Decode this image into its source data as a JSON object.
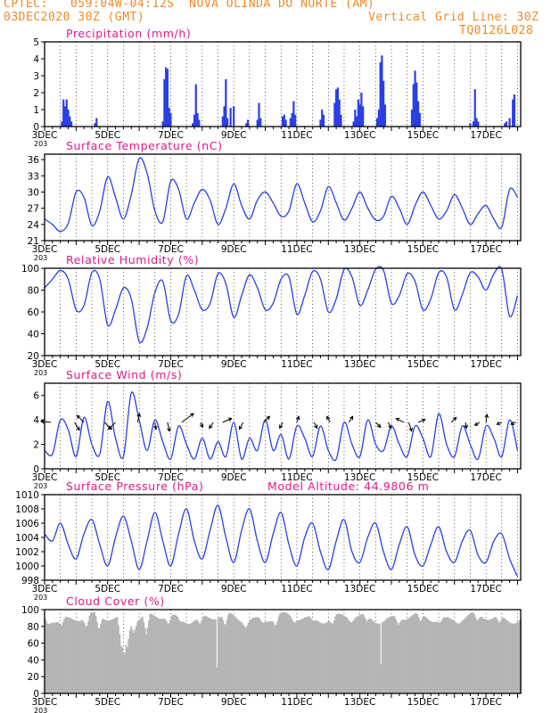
{
  "header": {
    "line1": "CPTEC:   059:04W-04:12S  NOVA OLINDA DO NORTE (AM)",
    "line2_left": "03DEC2020 30Z (GMT)",
    "line2_right": "Vertical Grid Line: 30Z",
    "model": "TQ0126L028"
  },
  "chart_data": [
    {
      "type": "bar",
      "title": "Precipitation (mm/h)",
      "ylim": [
        0,
        5
      ],
      "yticks": [
        0,
        1,
        2,
        3,
        4,
        5
      ],
      "xticks": [
        "3DEC",
        "5DEC",
        "7DEC",
        "9DEC",
        "11DEC",
        "13DEC",
        "15DEC",
        "17DEC"
      ],
      "x_start_label": "203",
      "bars": [
        {
          "day": 3.55,
          "value": 0.3
        },
        {
          "day": 3.6,
          "value": 1.6
        },
        {
          "day": 3.65,
          "value": 1.2
        },
        {
          "day": 3.7,
          "value": 1.6
        },
        {
          "day": 3.75,
          "value": 1.0
        },
        {
          "day": 3.8,
          "value": 0.6
        },
        {
          "day": 3.85,
          "value": 0.3
        },
        {
          "day": 4.6,
          "value": 0.2
        },
        {
          "day": 4.65,
          "value": 0.5
        },
        {
          "day": 6.75,
          "value": 0.3
        },
        {
          "day": 6.8,
          "value": 2.8
        },
        {
          "day": 6.85,
          "value": 3.5
        },
        {
          "day": 6.9,
          "value": 3.4
        },
        {
          "day": 6.95,
          "value": 1.1
        },
        {
          "day": 7.0,
          "value": 0.8
        },
        {
          "day": 7.7,
          "value": 0.2
        },
        {
          "day": 7.75,
          "value": 0.7
        },
        {
          "day": 7.8,
          "value": 2.5
        },
        {
          "day": 7.85,
          "value": 0.8
        },
        {
          "day": 7.9,
          "value": 0.4
        },
        {
          "day": 8.65,
          "value": 0.6
        },
        {
          "day": 8.7,
          "value": 1.2
        },
        {
          "day": 8.75,
          "value": 2.8
        },
        {
          "day": 8.8,
          "value": 0.5
        },
        {
          "day": 8.9,
          "value": 1.1
        },
        {
          "day": 9.0,
          "value": 1.2
        },
        {
          "day": 9.4,
          "value": 0.2
        },
        {
          "day": 9.45,
          "value": 0.4
        },
        {
          "day": 9.75,
          "value": 0.4
        },
        {
          "day": 9.8,
          "value": 1.4
        },
        {
          "day": 9.85,
          "value": 0.5
        },
        {
          "day": 10.55,
          "value": 0.6
        },
        {
          "day": 10.6,
          "value": 0.7
        },
        {
          "day": 10.65,
          "value": 0.4
        },
        {
          "day": 10.8,
          "value": 0.5
        },
        {
          "day": 10.85,
          "value": 0.8
        },
        {
          "day": 10.9,
          "value": 1.5
        },
        {
          "day": 10.95,
          "value": 0.7
        },
        {
          "day": 11.75,
          "value": 0.4
        },
        {
          "day": 11.8,
          "value": 1.0
        },
        {
          "day": 11.85,
          "value": 0.7
        },
        {
          "day": 12.2,
          "value": 1.4
        },
        {
          "day": 12.25,
          "value": 2.2
        },
        {
          "day": 12.3,
          "value": 2.3
        },
        {
          "day": 12.35,
          "value": 1.6
        },
        {
          "day": 12.4,
          "value": 0.7
        },
        {
          "day": 12.8,
          "value": 0.3
        },
        {
          "day": 12.85,
          "value": 1.0
        },
        {
          "day": 12.9,
          "value": 0.6
        },
        {
          "day": 12.95,
          "value": 1.6
        },
        {
          "day": 13.0,
          "value": 1.3
        },
        {
          "day": 13.05,
          "value": 2.0
        },
        {
          "day": 13.1,
          "value": 1.2
        },
        {
          "day": 13.55,
          "value": 0.5
        },
        {
          "day": 13.6,
          "value": 1.0
        },
        {
          "day": 13.65,
          "value": 3.8
        },
        {
          "day": 13.7,
          "value": 4.2
        },
        {
          "day": 13.75,
          "value": 2.7
        },
        {
          "day": 13.8,
          "value": 1.3
        },
        {
          "day": 14.65,
          "value": 1.0
        },
        {
          "day": 14.7,
          "value": 2.5
        },
        {
          "day": 14.75,
          "value": 3.3
        },
        {
          "day": 14.8,
          "value": 2.6
        },
        {
          "day": 14.85,
          "value": 1.5
        },
        {
          "day": 14.9,
          "value": 0.8
        },
        {
          "day": 16.5,
          "value": 0.2
        },
        {
          "day": 16.6,
          "value": 0.3
        },
        {
          "day": 16.65,
          "value": 2.2
        },
        {
          "day": 16.7,
          "value": 0.5
        },
        {
          "day": 16.75,
          "value": 0.3
        },
        {
          "day": 17.6,
          "value": 0.2
        },
        {
          "day": 17.65,
          "value": 0.3
        },
        {
          "day": 17.75,
          "value": 0.5
        },
        {
          "day": 17.85,
          "value": 1.6
        },
        {
          "day": 17.9,
          "value": 1.9
        }
      ]
    },
    {
      "type": "line",
      "title": "Surface Temperature (nC)",
      "ylim": [
        21,
        37
      ],
      "yticks": [
        21,
        24,
        27,
        30,
        33,
        36
      ],
      "xticks": [
        "3DEC",
        "5DEC",
        "7DEC",
        "9DEC",
        "11DEC",
        "13DEC",
        "15DEC",
        "17DEC"
      ],
      "x_start_label": "203",
      "x": [
        3.0,
        3.25,
        3.5,
        3.75,
        4.0,
        4.25,
        4.5,
        4.75,
        5.0,
        5.25,
        5.5,
        5.75,
        6.0,
        6.25,
        6.5,
        6.75,
        7.0,
        7.25,
        7.5,
        7.75,
        8.0,
        8.25,
        8.5,
        8.75,
        9.0,
        9.25,
        9.5,
        9.75,
        10.0,
        10.25,
        10.5,
        10.75,
        11.0,
        11.25,
        11.5,
        11.75,
        12.0,
        12.25,
        12.5,
        12.75,
        13.0,
        13.25,
        13.5,
        13.75,
        14.0,
        14.25,
        14.5,
        14.75,
        15.0,
        15.25,
        15.5,
        15.75,
        16.0,
        16.25,
        16.5,
        16.75,
        17.0,
        17.25,
        17.5,
        17.75,
        18.0
      ],
      "y": [
        25.0,
        24.0,
        22.7,
        24.2,
        30.0,
        29.0,
        23.8,
        26.5,
        32.8,
        29.0,
        25.0,
        29.5,
        36.2,
        33.5,
        26.5,
        24.5,
        32.0,
        30.5,
        25.0,
        28.0,
        30.5,
        28.5,
        24.0,
        27.0,
        31.5,
        27.5,
        25.0,
        28.5,
        30.0,
        28.0,
        25.5,
        26.5,
        31.5,
        28.0,
        24.5,
        26.5,
        31.0,
        28.0,
        24.8,
        27.0,
        30.0,
        27.0,
        24.8,
        25.5,
        29.2,
        27.0,
        24.0,
        27.5,
        30.0,
        27.5,
        25.0,
        26.5,
        29.5,
        27.0,
        24.0,
        26.0,
        27.5,
        25.0,
        23.5,
        30.5,
        29.0
      ]
    },
    {
      "type": "line",
      "title": "Relative Humidity (%)",
      "ylim": [
        20,
        100
      ],
      "yticks": [
        20,
        40,
        60,
        80,
        100
      ],
      "xticks": [
        "3DEC",
        "5DEC",
        "7DEC",
        "9DEC",
        "11DEC",
        "13DEC",
        "15DEC",
        "17DEC"
      ],
      "x_start_label": "203",
      "x": [
        3.0,
        3.25,
        3.5,
        3.75,
        4.0,
        4.25,
        4.5,
        4.75,
        5.0,
        5.25,
        5.5,
        5.75,
        6.0,
        6.25,
        6.5,
        6.75,
        7.0,
        7.25,
        7.5,
        7.75,
        8.0,
        8.25,
        8.5,
        8.75,
        9.0,
        9.25,
        9.5,
        9.75,
        10.0,
        10.25,
        10.5,
        10.75,
        11.0,
        11.25,
        11.5,
        11.75,
        12.0,
        12.25,
        12.5,
        12.75,
        13.0,
        13.25,
        13.5,
        13.75,
        14.0,
        14.25,
        14.5,
        14.75,
        15.0,
        15.25,
        15.5,
        15.75,
        16.0,
        16.25,
        16.5,
        16.75,
        17.0,
        17.25,
        17.5,
        17.75,
        18.0
      ],
      "y": [
        82,
        90,
        98,
        90,
        62,
        66,
        96,
        90,
        48,
        62,
        82,
        72,
        33,
        45,
        78,
        88,
        52,
        58,
        93,
        80,
        62,
        68,
        95,
        86,
        55,
        75,
        94,
        82,
        62,
        68,
        90,
        92,
        58,
        75,
        97,
        90,
        60,
        72,
        99,
        92,
        66,
        80,
        99,
        98,
        68,
        75,
        95,
        88,
        62,
        72,
        96,
        92,
        62,
        76,
        96,
        92,
        80,
        95,
        99,
        56,
        75
      ]
    },
    {
      "type": "line",
      "title": "Surface Wind (m/s)",
      "ylim": [
        0,
        7
      ],
      "yticks": [
        0,
        2,
        4,
        6
      ],
      "xticks": [
        "3DEC",
        "5DEC",
        "7DEC",
        "9DEC",
        "11DEC",
        "13DEC",
        "15DEC",
        "17DEC"
      ],
      "x_start_label": "203",
      "x": [
        3.0,
        3.25,
        3.5,
        3.75,
        4.0,
        4.25,
        4.5,
        4.75,
        5.0,
        5.25,
        5.5,
        5.75,
        6.0,
        6.25,
        6.5,
        6.75,
        7.0,
        7.25,
        7.5,
        7.75,
        8.0,
        8.25,
        8.5,
        8.75,
        9.0,
        9.25,
        9.5,
        9.75,
        10.0,
        10.25,
        10.5,
        10.75,
        11.0,
        11.25,
        11.5,
        11.75,
        12.0,
        12.25,
        12.5,
        12.75,
        13.0,
        13.25,
        13.5,
        13.75,
        14.0,
        14.25,
        14.5,
        14.75,
        15.0,
        15.25,
        15.5,
        15.75,
        16.0,
        16.25,
        16.5,
        16.75,
        17.0,
        17.25,
        17.5,
        17.75,
        18.0
      ],
      "y": [
        1.5,
        1.2,
        4.0,
        3.2,
        1.0,
        4.2,
        2.0,
        1.2,
        5.5,
        2.5,
        1.0,
        6.2,
        4.0,
        1.5,
        4.0,
        2.2,
        0.8,
        3.5,
        2.0,
        0.8,
        2.5,
        0.8,
        2.2,
        1.0,
        3.8,
        0.8,
        2.5,
        1.5,
        4.0,
        1.5,
        2.8,
        0.8,
        3.5,
        2.5,
        1.0,
        3.5,
        1.5,
        0.8,
        3.8,
        2.0,
        1.0,
        4.0,
        2.0,
        1.5,
        3.5,
        2.0,
        1.0,
        3.5,
        2.5,
        1.0,
        4.5,
        2.0,
        1.0,
        3.5,
        2.0,
        0.8,
        3.5,
        2.5,
        1.0,
        4.0,
        1.5
      ],
      "arrows": [
        {
          "day": 3.2,
          "u": -1,
          "v": 0.1
        },
        {
          "day": 3.95,
          "u": 0.5,
          "v": -0.8
        },
        {
          "day": 4.25,
          "u": -0.7,
          "v": 0.7
        },
        {
          "day": 4.9,
          "u": 0.7,
          "v": -0.7
        },
        {
          "day": 5.25,
          "u": -0.7,
          "v": -0.7
        },
        {
          "day": 5.95,
          "u": 0.2,
          "v": 0.9
        },
        {
          "day": 6.5,
          "u": 0.1,
          "v": -0.7
        },
        {
          "day": 6.9,
          "u": 0.2,
          "v": -0.9
        },
        {
          "day": 7.35,
          "u": 1.2,
          "v": 0.9
        },
        {
          "day": 7.95,
          "u": 0.2,
          "v": -0.5
        },
        {
          "day": 8.35,
          "u": -0.4,
          "v": -0.6
        },
        {
          "day": 8.65,
          "u": 0.9,
          "v": 0.4
        },
        {
          "day": 9.3,
          "u": -0.4,
          "v": -0.7
        },
        {
          "day": 9.95,
          "u": 0.6,
          "v": 0.6
        },
        {
          "day": 10.55,
          "u": -0.3,
          "v": -0.6
        },
        {
          "day": 11.0,
          "u": 0.2,
          "v": 0.6
        },
        {
          "day": 11.55,
          "u": 0.3,
          "v": -0.6
        },
        {
          "day": 12.05,
          "u": -0.3,
          "v": 0.6
        },
        {
          "day": 12.65,
          "u": 0.4,
          "v": 0.6
        },
        {
          "day": 13.5,
          "u": 0.5,
          "v": -0.5
        },
        {
          "day": 13.9,
          "u": 0.3,
          "v": -0.6
        },
        {
          "day": 14.4,
          "u": -0.8,
          "v": 0.4
        },
        {
          "day": 14.55,
          "u": 0.3,
          "v": -0.9
        },
        {
          "day": 14.85,
          "u": 0.7,
          "v": 0.3
        },
        {
          "day": 15.9,
          "u": 0.5,
          "v": 0.5
        },
        {
          "day": 16.35,
          "u": 0.1,
          "v": -0.6
        },
        {
          "day": 16.8,
          "u": -0.5,
          "v": -0.3
        },
        {
          "day": 17.0,
          "u": 0.1,
          "v": 0.8
        },
        {
          "day": 17.5,
          "u": -0.5,
          "v": -0.2
        },
        {
          "day": 17.95,
          "u": -0.5,
          "v": -0.2
        }
      ]
    },
    {
      "type": "line",
      "title": "Surface Pressure (hPa)",
      "annotation": "Model Altitude: 44.9806  m",
      "ylim": [
        998,
        1010
      ],
      "yticks": [
        998,
        1000,
        1002,
        1004,
        1006,
        1008,
        1010
      ],
      "xticks": [
        "3DEC",
        "5DEC",
        "7DEC",
        "9DEC",
        "11DEC",
        "13DEC",
        "15DEC",
        "17DEC"
      ],
      "x_start_label": "203",
      "x": [
        3.0,
        3.25,
        3.5,
        3.75,
        4.0,
        4.25,
        4.5,
        4.75,
        5.0,
        5.25,
        5.5,
        5.75,
        6.0,
        6.25,
        6.5,
        6.75,
        7.0,
        7.25,
        7.5,
        7.75,
        8.0,
        8.25,
        8.5,
        8.75,
        9.0,
        9.25,
        9.5,
        9.75,
        10.0,
        10.25,
        10.5,
        10.75,
        11.0,
        11.25,
        11.5,
        11.75,
        12.0,
        12.25,
        12.5,
        12.75,
        13.0,
        13.25,
        13.5,
        13.75,
        14.0,
        14.25,
        14.5,
        14.75,
        15.0,
        15.25,
        15.5,
        15.75,
        16.0,
        16.25,
        16.5,
        16.75,
        17.0,
        17.25,
        17.5,
        17.75,
        18.0
      ],
      "y": [
        1004.5,
        1003.5,
        1006.0,
        1003.0,
        1001.0,
        1004.5,
        1006.5,
        1003.0,
        1000.0,
        1004.0,
        1007.0,
        1003.5,
        999.5,
        1003.5,
        1007.5,
        1003.5,
        1000.0,
        1004.5,
        1008.0,
        1003.5,
        1001.0,
        1005.0,
        1008.5,
        1004.0,
        1000.5,
        1005.0,
        1008.0,
        1003.5,
        1000.5,
        1004.5,
        1007.5,
        1003.0,
        1000.0,
        1004.0,
        1006.0,
        1002.0,
        999.5,
        1003.5,
        1006.5,
        1002.0,
        1000.5,
        1004.0,
        1006.0,
        1002.0,
        999.5,
        1003.0,
        1005.5,
        1001.5,
        1000.0,
        1003.0,
        1005.5,
        1002.0,
        1000.5,
        1003.5,
        1005.0,
        1001.5,
        1000.5,
        1003.5,
        1004.5,
        1001.0,
        998.5
      ]
    },
    {
      "type": "bar",
      "title": "Cloud Cover (%)",
      "ylim": [
        0,
        100
      ],
      "yticks": [
        0,
        20,
        40,
        60,
        80,
        100
      ],
      "xticks": [
        "3DEC",
        "5DEC",
        "7DEC",
        "9DEC",
        "11DEC",
        "13DEC",
        "15DEC",
        "17DEC"
      ],
      "x_start_label": "203",
      "baseline": 90,
      "dips": [
        {
          "day": 3.1,
          "value": 82
        },
        {
          "day": 3.5,
          "value": 80
        },
        {
          "day": 4.3,
          "value": 78
        },
        {
          "day": 4.7,
          "value": 75
        },
        {
          "day": 5.4,
          "value": 60
        },
        {
          "day": 5.5,
          "value": 40
        },
        {
          "day": 5.6,
          "value": 55
        },
        {
          "day": 5.8,
          "value": 72
        },
        {
          "day": 6.2,
          "value": 70
        },
        {
          "day": 6.9,
          "value": 82
        },
        {
          "day": 7.3,
          "value": 85
        },
        {
          "day": 7.9,
          "value": 82
        },
        {
          "day": 8.45,
          "value": 2
        },
        {
          "day": 8.7,
          "value": 80
        },
        {
          "day": 9.35,
          "value": 78
        },
        {
          "day": 9.9,
          "value": 84
        },
        {
          "day": 10.3,
          "value": 80
        },
        {
          "day": 10.9,
          "value": 84
        },
        {
          "day": 11.5,
          "value": 86
        },
        {
          "day": 12.1,
          "value": 82
        },
        {
          "day": 12.7,
          "value": 84
        },
        {
          "day": 13.2,
          "value": 86
        },
        {
          "day": 13.65,
          "value": 10
        },
        {
          "day": 14.2,
          "value": 82
        },
        {
          "day": 14.9,
          "value": 85
        },
        {
          "day": 15.5,
          "value": 84
        },
        {
          "day": 16.1,
          "value": 83
        },
        {
          "day": 16.7,
          "value": 86
        },
        {
          "day": 17.4,
          "value": 84
        },
        {
          "day": 17.8,
          "value": 86
        }
      ]
    }
  ]
}
